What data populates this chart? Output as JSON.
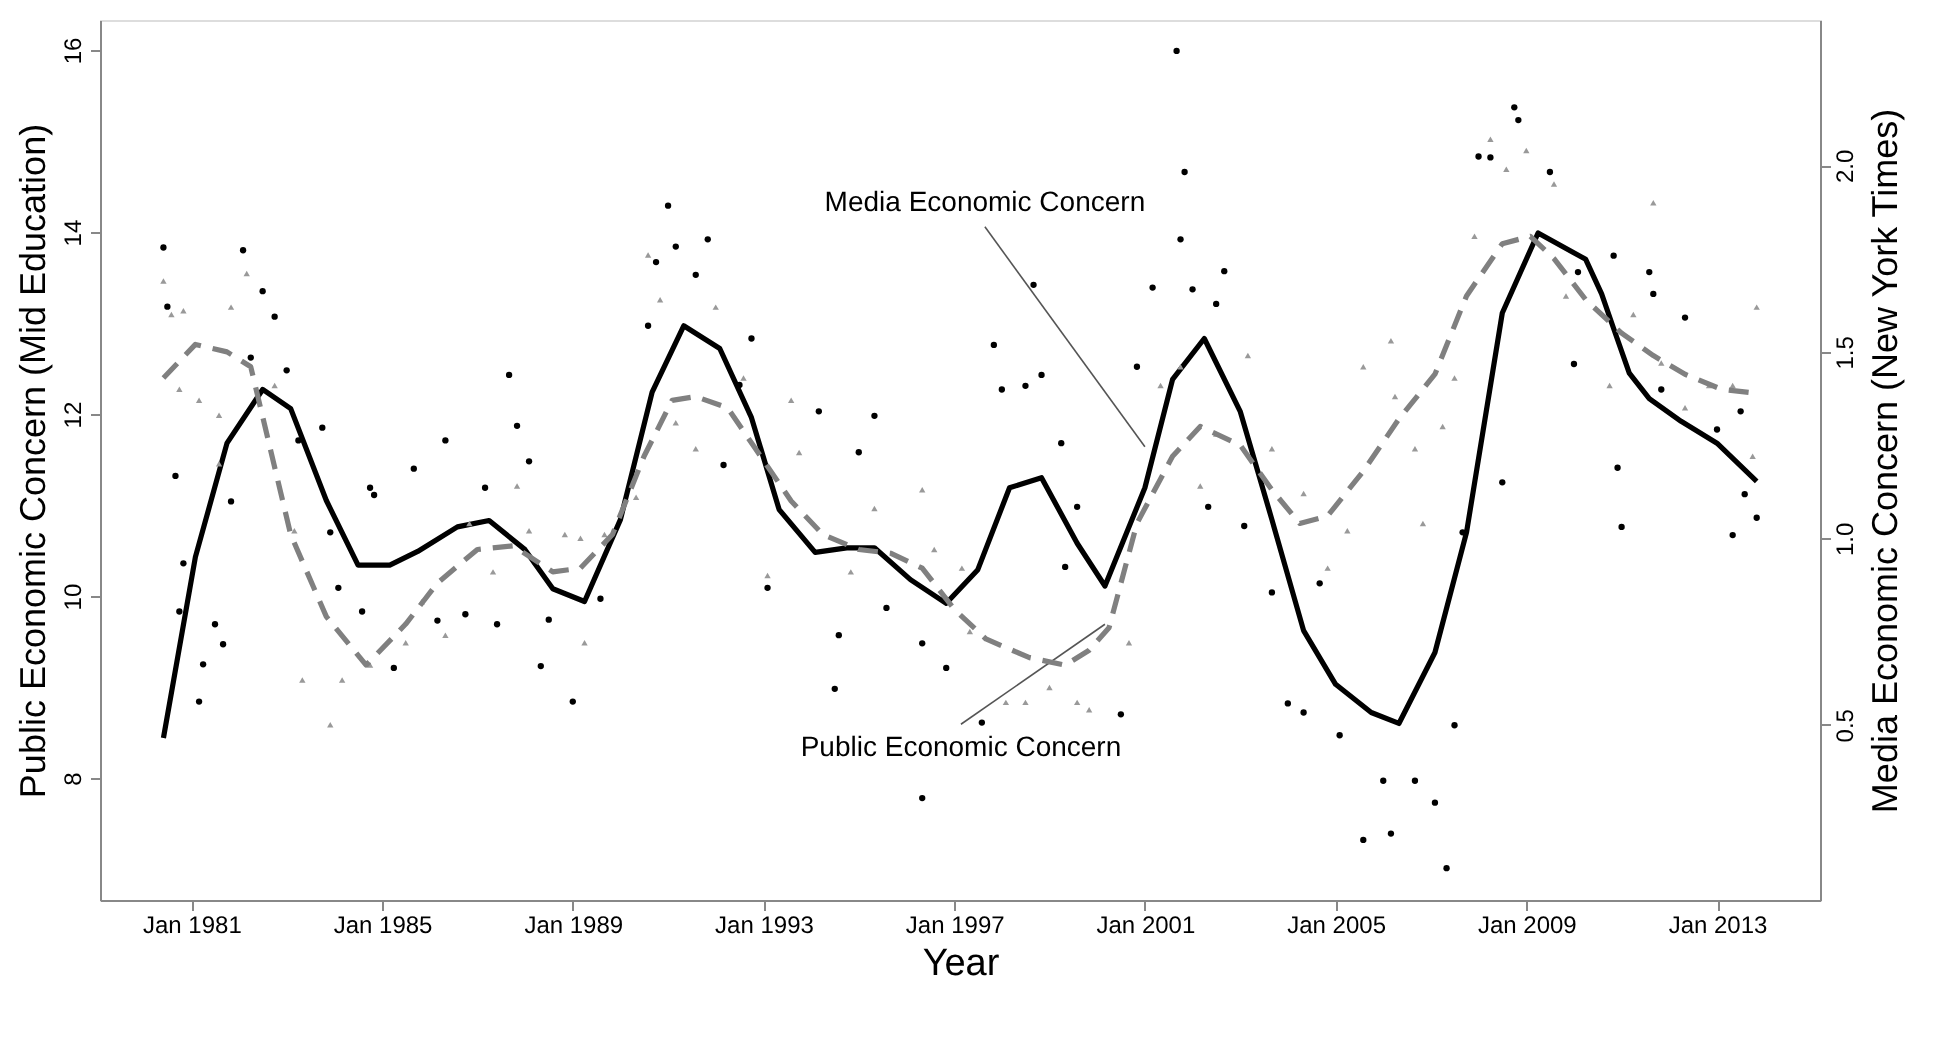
{
  "chart_data": {
    "type": "line",
    "xlabel": "Year",
    "ylabel": "Public Economic Concern (Mid Education)",
    "y2label": "Media Economic Concern (New York Times)",
    "xlim": [
      "1979-02",
      "2015-03"
    ],
    "xticks": [
      {
        "value": "1981-01",
        "label": "Jan 1981"
      },
      {
        "value": "1985-01",
        "label": "Jan 1985"
      },
      {
        "value": "1989-01",
        "label": "Jan 1989"
      },
      {
        "value": "1993-01",
        "label": "Jan 1993"
      },
      {
        "value": "1997-01",
        "label": "Jan 1997"
      },
      {
        "value": "2001-01",
        "label": "Jan 2001"
      },
      {
        "value": "2005-01",
        "label": "Jan 2005"
      },
      {
        "value": "2009-01",
        "label": "Jan 2009"
      },
      {
        "value": "2013-01",
        "label": "Jan 2013"
      }
    ],
    "ylim": [
      6.66,
      16.33
    ],
    "yticks": [
      8,
      10,
      12,
      14,
      16
    ],
    "y2lim": [
      0.03,
      2.39
    ],
    "y2ticks": [
      {
        "value": 0.5,
        "label": "0.5"
      },
      {
        "value": 1,
        "label": "1.0"
      },
      {
        "value": 1.5,
        "label": "1.5"
      },
      {
        "value": 2,
        "label": "2.0"
      }
    ],
    "annotations": [
      {
        "text": "Media Economic Concern",
        "x": "2001-01",
        "y": 11.64
      },
      {
        "text": "Public Economic Concern",
        "x": "2000-03",
        "y": 9.69
      }
    ],
    "series": [
      {
        "type": "scatter",
        "marker": "circle",
        "color": "#000000",
        "axis": "y",
        "x": [
          "1980-06",
          "1980-07",
          "1980-09",
          "1980-10",
          "1980-11",
          "1981-03",
          "1981-04",
          "1981-07",
          "1981-09",
          "1981-11",
          "1982-02",
          "1982-04",
          "1982-07",
          "1982-10",
          "1983-01",
          "1983-04",
          "1983-10",
          "1983-12",
          "1984-02",
          "1984-08",
          "1984-10",
          "1984-11",
          "1985-04",
          "1985-09",
          "1986-03",
          "1986-05",
          "1986-10",
          "1987-03",
          "1987-06",
          "1987-09",
          "1987-11",
          "1988-02",
          "1988-05",
          "1988-07",
          "1989-01",
          "1989-08",
          "1990-08",
          "1990-10",
          "1991-01",
          "1991-03",
          "1991-08",
          "1991-11",
          "1992-03",
          "1992-07",
          "1992-10",
          "1993-02",
          "1994-03",
          "1994-07",
          "1994-08",
          "1995-01",
          "1995-05",
          "1995-08",
          "1996-05",
          "1996-05",
          "1996-11",
          "1997-08",
          "1997-11",
          "1998-01",
          "1998-07",
          "1998-09",
          "1998-11",
          "1999-04",
          "1999-05",
          "1999-08",
          "2000-07",
          "2000-11",
          "2001-03",
          "2001-09",
          "2001-10",
          "2001-11",
          "2002-01",
          "2002-05",
          "2002-07",
          "2002-09",
          "2003-02",
          "2003-09",
          "2004-01",
          "2004-05",
          "2004-09",
          "2005-02",
          "2005-08",
          "2006-01",
          "2006-03",
          "2006-09",
          "2007-02",
          "2007-05",
          "2007-07",
          "2007-09",
          "2008-01",
          "2008-04",
          "2008-07",
          "2008-10",
          "2008-11",
          "2009-07",
          "2010-01",
          "2010-02",
          "2010-11",
          "2010-12",
          "2011-01",
          "2011-08",
          "2011-09",
          "2011-11",
          "2012-05",
          "2013-01",
          "2013-05",
          "2013-07",
          "2013-08",
          "2013-11"
        ],
        "values": [
          13.83,
          13.18,
          11.32,
          9.83,
          10.36,
          8.84,
          9.25,
          9.69,
          9.47,
          11.04,
          13.8,
          12.62,
          13.35,
          13.07,
          12.48,
          11.71,
          11.85,
          10.7,
          10.09,
          9.83,
          11.19,
          11.11,
          9.21,
          11.4,
          9.73,
          11.71,
          9.8,
          11.19,
          9.69,
          12.43,
          11.87,
          11.48,
          9.23,
          9.74,
          8.84,
          9.97,
          12.97,
          13.67,
          14.29,
          13.84,
          13.53,
          13.92,
          11.44,
          12.32,
          12.83,
          10.09,
          12.03,
          8.98,
          9.57,
          11.58,
          11.98,
          9.87,
          9.48,
          7.78,
          9.21,
          8.61,
          12.76,
          12.27,
          12.31,
          13.42,
          12.43,
          11.68,
          10.32,
          10.98,
          8.7,
          12.52,
          13.39,
          15.99,
          13.92,
          14.66,
          13.37,
          10.98,
          13.21,
          13.57,
          10.77,
          10.04,
          8.82,
          8.72,
          10.14,
          8.47,
          7.32,
          7.97,
          7.39,
          7.97,
          7.73,
          7.01,
          8.58,
          10.7,
          14.83,
          14.82,
          11.25,
          15.37,
          15.23,
          14.66,
          12.55,
          13.56,
          13.74,
          11.41,
          10.76,
          13.56,
          13.32,
          12.27,
          13.06,
          11.83,
          10.67,
          12.03,
          11.12,
          10.86
        ]
      },
      {
        "type": "scatter",
        "marker": "triangle",
        "color": "#999999",
        "axis": "y2",
        "x": [
          "1980-06",
          "1980-08",
          "1980-10",
          "1980-11",
          "1981-03",
          "1981-08",
          "1981-08",
          "1981-11",
          "1982-03",
          "1982-10",
          "1983-03",
          "1983-05",
          "1983-12",
          "1984-03",
          "1984-10",
          "1985-07",
          "1985-11",
          "1986-05",
          "1986-11",
          "1987-05",
          "1987-11",
          "1988-02",
          "1988-11",
          "1989-03",
          "1989-04",
          "1989-09",
          "1990-05",
          "1990-08",
          "1990-11",
          "1991-03",
          "1991-08",
          "1992-01",
          "1992-08",
          "1993-02",
          "1993-08",
          "1993-10",
          "1994-11",
          "1995-05",
          "1996-05",
          "1996-08",
          "1997-03",
          "1997-05",
          "1998-02",
          "1998-07",
          "1999-01",
          "1999-08",
          "1999-11",
          "2000-09",
          "2001-05",
          "2001-10",
          "2002-03",
          "2002-07",
          "2003-03",
          "2003-09",
          "2004-05",
          "2004-11",
          "2005-04",
          "2005-08",
          "2006-03",
          "2006-04",
          "2006-09",
          "2006-11",
          "2007-04",
          "2007-07",
          "2007-12",
          "2008-04",
          "2008-08",
          "2009-01",
          "2009-08",
          "2009-11",
          "2010-10",
          "2011-04",
          "2011-09",
          "2011-11",
          "2012-05",
          "2012-11",
          "2013-05",
          "2013-10",
          "2013-11"
        ],
        "values": [
          1.69,
          1.6,
          1.4,
          1.61,
          1.37,
          1.33,
          1.2,
          1.62,
          1.71,
          1.41,
          1.02,
          0.62,
          0.5,
          0.62,
          0.66,
          0.72,
          0.83,
          0.74,
          1.04,
          0.91,
          1.14,
          1.02,
          1.01,
          1.0,
          0.72,
          1.01,
          1.11,
          1.76,
          1.64,
          1.31,
          1.24,
          1.62,
          1.43,
          0.9,
          1.37,
          1.23,
          0.91,
          1.08,
          1.13,
          0.97,
          0.92,
          0.75,
          0.56,
          0.56,
          0.6,
          0.56,
          0.54,
          0.72,
          1.41,
          1.46,
          1.14,
          1.28,
          1.49,
          1.24,
          1.12,
          0.92,
          1.02,
          1.46,
          1.53,
          1.38,
          1.24,
          1.04,
          1.3,
          1.43,
          1.81,
          2.07,
          1.99,
          2.04,
          1.95,
          1.65,
          1.41,
          1.6,
          1.9,
          1.47,
          1.35,
          1.41,
          1.41,
          1.22,
          1.62
        ]
      },
      {
        "line_style": "dashed",
        "color": "#808080",
        "axis": "y2",
        "x": [
          "1980-06",
          "1981-02",
          "1981-10",
          "1982-04",
          "1983-02",
          "1983-11",
          "1984-09",
          "1985-07",
          "1986-03",
          "1987-01",
          "1987-10",
          "1988-08",
          "1989-03",
          "1989-11",
          "1990-07",
          "1991-02",
          "1991-08",
          "1992-04",
          "1992-11",
          "1993-08",
          "1994-04",
          "1995-01",
          "1995-09",
          "1996-05",
          "1997-01",
          "1997-09",
          "1998-08",
          "1999-05",
          "1999-11",
          "2000-04",
          "2000-11",
          "2001-08",
          "2002-03",
          "2003-01",
          "2003-09",
          "2004-04",
          "2004-11",
          "2005-08",
          "2006-05",
          "2007-02",
          "2007-10",
          "2008-07",
          "2009-02",
          "2009-08",
          "2010-04",
          "2011-01",
          "2011-09",
          "2012-05",
          "2013-02",
          "2013-10"
        ],
        "values": [
          1.43,
          1.52,
          1.5,
          1.46,
          1.01,
          0.79,
          0.66,
          0.77,
          0.88,
          0.97,
          0.98,
          0.91,
          0.92,
          1.01,
          1.22,
          1.37,
          1.38,
          1.35,
          1.24,
          1.1,
          1.01,
          0.97,
          0.96,
          0.92,
          0.81,
          0.73,
          0.68,
          0.66,
          0.7,
          0.76,
          1.04,
          1.22,
          1.3,
          1.25,
          1.13,
          1.04,
          1.06,
          1.18,
          1.32,
          1.44,
          1.65,
          1.79,
          1.81,
          1.75,
          1.64,
          1.55,
          1.49,
          1.44,
          1.4,
          1.39
        ]
      },
      {
        "line_style": "solid",
        "color": "#000000",
        "axis": "y",
        "x": [
          "1980-06",
          "1981-02",
          "1981-10",
          "1982-07",
          "1983-02",
          "1983-11",
          "1984-07",
          "1985-03",
          "1985-10",
          "1986-08",
          "1987-04",
          "1988-01",
          "1988-08",
          "1989-04",
          "1990-01",
          "1990-09",
          "1991-05",
          "1992-02",
          "1992-10",
          "1993-05",
          "1994-02",
          "1994-10",
          "1995-05",
          "1996-02",
          "1996-11",
          "1997-07",
          "1998-03",
          "1998-11",
          "1999-08",
          "2000-03",
          "2001-01",
          "2001-08",
          "2002-04",
          "2003-01",
          "2003-09",
          "2004-05",
          "2005-01",
          "2005-10",
          "2006-05",
          "2007-02",
          "2007-10",
          "2008-07",
          "2009-04",
          "2010-04",
          "2010-08",
          "2010-11",
          "2011-03",
          "2011-08",
          "2012-04",
          "2013-01",
          "2013-11"
        ],
        "values": [
          8.44,
          10.43,
          11.68,
          12.27,
          12.06,
          11.05,
          10.34,
          10.34,
          10.49,
          10.76,
          10.83,
          10.51,
          10.08,
          9.94,
          10.84,
          12.24,
          12.97,
          12.72,
          11.96,
          10.95,
          10.48,
          10.53,
          10.53,
          10.18,
          9.92,
          10.29,
          11.19,
          11.3,
          10.58,
          10.11,
          11.19,
          12.38,
          12.83,
          12.03,
          10.84,
          9.62,
          9.03,
          8.72,
          8.6,
          9.38,
          10.7,
          13.11,
          13.99,
          13.7,
          13.32,
          12.94,
          12.45,
          12.17,
          11.92,
          11.68,
          11.26
        ]
      }
    ]
  }
}
